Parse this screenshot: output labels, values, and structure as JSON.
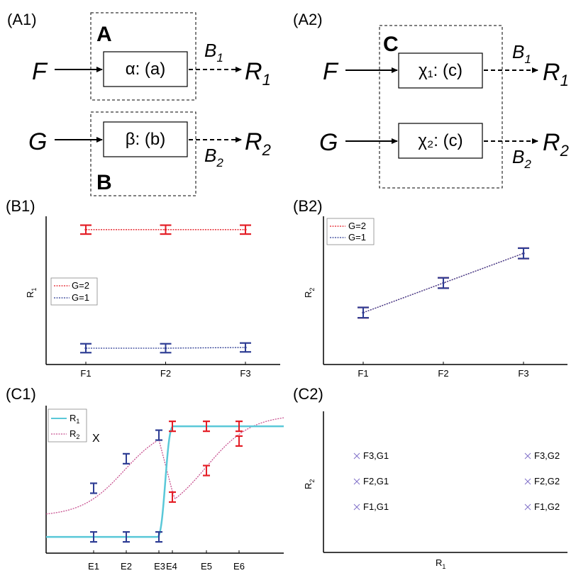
{
  "panels": {
    "a1": "(A1)",
    "a2": "(A2)",
    "b1": "(B1)",
    "b2": "(B2)",
    "c1": "(C1)",
    "c2": "(C2)"
  },
  "a1": {
    "group_a": "A",
    "group_b": "B",
    "input_f": "F",
    "input_g": "G",
    "box_alpha": "α: (a)",
    "box_beta": "β: (b)",
    "out_b1": "B",
    "out_b1_sub": "1",
    "out_b2": "B",
    "out_b2_sub": "2",
    "r1": "R",
    "r1_sub": "1",
    "r2": "R",
    "r2_sub": "2"
  },
  "a2": {
    "group_c": "C",
    "input_f": "F",
    "input_g": "G",
    "box_chi1": "χ₁: (c)",
    "box_chi2": "χ₂: (c)",
    "out_b1": "B",
    "out_b1_sub": "1",
    "out_b2": "B",
    "out_b2_sub": "2",
    "r1": "R",
    "r1_sub": "1",
    "r2": "R",
    "r2_sub": "2"
  },
  "colors": {
    "red": "#e41e26",
    "blue": "#2e3d94",
    "cyan": "#5ac8d8",
    "magenta": "#c7508f",
    "purple": "#8070c8"
  },
  "chart_data": [
    {
      "id": "B1",
      "type": "line",
      "ylabel": "R",
      "ylabel_sub": "1",
      "categories": [
        "F1",
        "F2",
        "F3"
      ],
      "ylim": [
        0,
        1
      ],
      "legend": {
        "placement": "left-middle",
        "entries": [
          "G=2",
          "G=1"
        ]
      },
      "series": [
        {
          "name": "G=2",
          "values": [
            0.91,
            0.91,
            0.91
          ],
          "err": 0.03
        },
        {
          "name": "G=1",
          "values": [
            0.11,
            0.11,
            0.115
          ],
          "err": 0.03
        }
      ]
    },
    {
      "id": "B2",
      "type": "line",
      "ylabel": "R",
      "ylabel_sub": "2",
      "categories": [
        "F1",
        "F2",
        "F3"
      ],
      "ylim": [
        0,
        1
      ],
      "legend": {
        "placement": "top-left",
        "entries": [
          "G=2",
          "G=1"
        ]
      },
      "series": [
        {
          "name": "G=2",
          "values": [
            0.35,
            0.55,
            0.75
          ],
          "err": 0.035
        },
        {
          "name": "G=1",
          "values": [
            0.35,
            0.55,
            0.75
          ],
          "err": 0.035
        }
      ]
    },
    {
      "id": "C1",
      "type": "line",
      "categories": [
        "E1",
        "E2",
        "E3",
        "E4",
        "E5",
        "E6"
      ],
      "ylim": [
        0,
        1
      ],
      "legend": {
        "placement": "top-left",
        "entries": [
          {
            "name": "R",
            "sub": "1"
          },
          {
            "name": "R",
            "sub": "2"
          }
        ]
      },
      "annotation": "X",
      "series": [
        {
          "name": "R1",
          "points": [
            [
              0.35,
              0.13
            ],
            [
              1.35,
              0.13
            ],
            [
              2.35,
              0.13
            ],
            [
              2.9,
              0.92
            ],
            [
              3.9,
              0.92
            ],
            [
              4.9,
              0.92
            ]
          ],
          "err": 0.03
        },
        {
          "name": "R2",
          "points": [
            [
              0.35,
              0.4
            ],
            [
              1.35,
              0.6
            ],
            [
              2.35,
              0.8
            ],
            [
              2.9,
              0.4
            ],
            [
              3.9,
              0.6
            ],
            [
              4.9,
              0.8
            ]
          ],
          "err": 0.03
        }
      ]
    },
    {
      "id": "C2",
      "type": "scatter",
      "xlabel": "R",
      "xlabel_sub": "1",
      "ylabel": "R",
      "ylabel_sub": "2",
      "points": [
        {
          "label": "F3,G1",
          "col": 0,
          "row": 2
        },
        {
          "label": "F2,G1",
          "col": 0,
          "row": 1
        },
        {
          "label": "F1,G1",
          "col": 0,
          "row": 0
        },
        {
          "label": "F3,G2",
          "col": 1,
          "row": 2
        },
        {
          "label": "F2,G2",
          "col": 1,
          "row": 1
        },
        {
          "label": "F1,G2",
          "col": 1,
          "row": 0
        }
      ]
    }
  ]
}
